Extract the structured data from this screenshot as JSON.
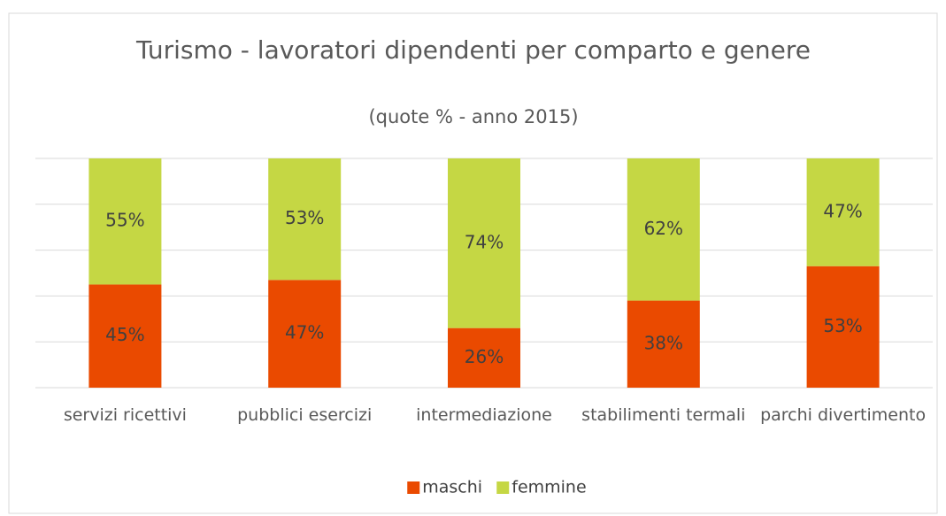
{
  "chart_data": {
    "type": "stacked_bar",
    "title": "Turismo - lavoratori dipendenti per comparto e genere",
    "subtitle": "(quote % - anno 2015)",
    "categories": [
      "servizi ricettivi",
      "pubblici esercizi",
      "intermediazione",
      "stabilimenti termali",
      "parchi divertimento"
    ],
    "series": [
      {
        "name": "maschi",
        "color": "#ea4a00",
        "values": [
          45,
          47,
          26,
          38,
          53
        ],
        "value_labels": [
          "45%",
          "47%",
          "26%",
          "38%",
          "53%"
        ]
      },
      {
        "name": "femmine",
        "color": "#c5d744",
        "values": [
          55,
          53,
          74,
          62,
          47
        ],
        "value_labels": [
          "55%",
          "53%",
          "74%",
          "62%",
          "47%"
        ]
      }
    ],
    "ylim": [
      0,
      100
    ],
    "yticks": [
      0,
      20,
      40,
      60,
      80,
      100
    ],
    "grid": true,
    "legend": "bottom"
  }
}
